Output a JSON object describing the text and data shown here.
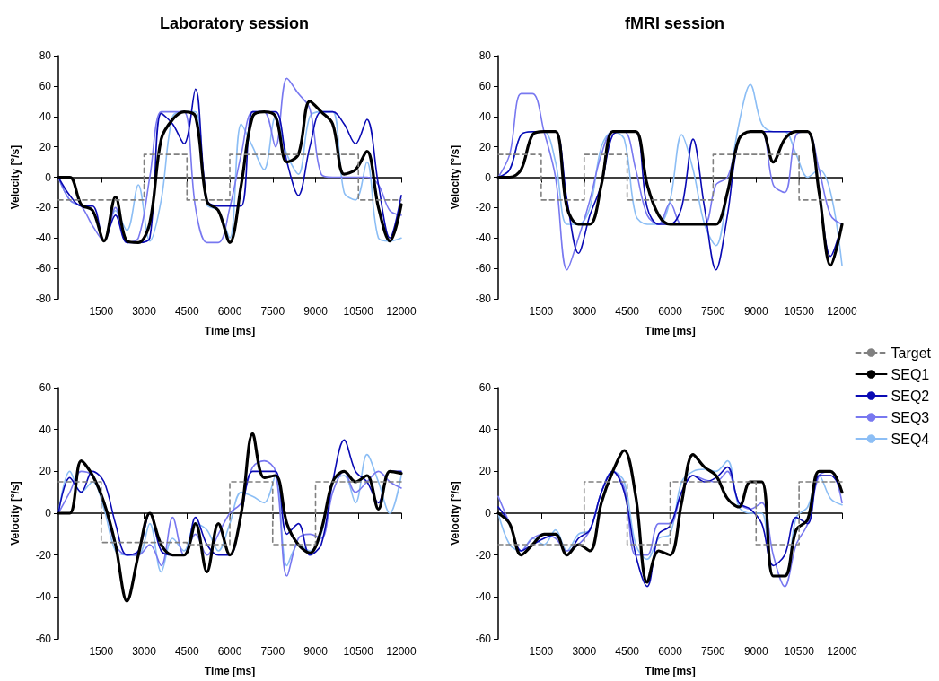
{
  "chart_data": [
    {
      "type": "line",
      "title": "Laboratory session",
      "xlabel": "Time [ms]",
      "ylabel": "Velocity [°/s]",
      "xlim": [
        0,
        12000
      ],
      "xticks": [
        1500,
        3000,
        4500,
        6000,
        7500,
        9000,
        10500,
        12000
      ],
      "ylim": [
        -80,
        80
      ],
      "yticks": [
        -80,
        -60,
        -40,
        -20,
        0,
        20,
        40,
        60,
        80
      ],
      "legend": false,
      "line_style": "solid",
      "marker": "none",
      "x": [
        0,
        400,
        800,
        1200,
        1600,
        2000,
        2400,
        2800,
        3200,
        3600,
        4000,
        4400,
        4800,
        5200,
        5600,
        6000,
        6400,
        6800,
        7200,
        7600,
        8000,
        8400,
        8800,
        9200,
        9600,
        10000,
        10400,
        10800,
        11200,
        11600,
        12000
      ],
      "series": [
        {
          "color": "#808080",
          "line_style": "dashed",
          "x": [
            0,
            3000,
            3000,
            4500,
            4500,
            6000,
            6000,
            10500,
            10500,
            12000
          ],
          "values": [
            -15,
            -15,
            15,
            15,
            -15,
            -15,
            15,
            15,
            -15,
            -15
          ]
        },
        {
          "color": "#000000",
          "values": [
            0,
            0,
            -18,
            -22,
            -42,
            -13,
            -42,
            -43,
            -30,
            25,
            38,
            43,
            40,
            -16,
            -22,
            -43,
            -5,
            40,
            43,
            40,
            10,
            15,
            50,
            43,
            35,
            2,
            5,
            17,
            -20,
            -42,
            -18
          ]
        },
        {
          "color": "#0a0ab4",
          "values": [
            0,
            -12,
            -19,
            -19,
            -42,
            -25,
            -43,
            -43,
            -40,
            42,
            35,
            22,
            58,
            -15,
            -19,
            -19,
            -19,
            43,
            43,
            43,
            10,
            -12,
            20,
            43,
            43,
            35,
            22,
            38,
            -5,
            -40,
            -12
          ]
        },
        {
          "color": "#7878f0",
          "values": [
            0,
            -15,
            -19,
            -32,
            -42,
            -20,
            -43,
            -40,
            0,
            43,
            43,
            43,
            -20,
            -43,
            -43,
            -20,
            15,
            43,
            43,
            20,
            65,
            55,
            45,
            2,
            0,
            0,
            0,
            0,
            -5,
            -22,
            -25
          ]
        },
        {
          "color": "#8cbef5",
          "values": [
            0,
            -15,
            -19,
            -22,
            -42,
            -22,
            -35,
            -5,
            -42,
            -15,
            40,
            43,
            43,
            -18,
            -22,
            -40,
            35,
            20,
            5,
            40,
            15,
            2,
            40,
            43,
            43,
            -10,
            -15,
            10,
            -40,
            -42,
            -40
          ]
        }
      ]
    },
    {
      "type": "line",
      "title": "fMRI session",
      "xlabel": "Time [ms]",
      "ylabel": "Velocity [°/s]",
      "xlim": [
        0,
        12000
      ],
      "xticks": [
        1500,
        3000,
        4500,
        6000,
        7500,
        9000,
        10500,
        12000
      ],
      "ylim": [
        -80,
        80
      ],
      "yticks": [
        -80,
        -60,
        -40,
        -20,
        0,
        20,
        40,
        60,
        80
      ],
      "legend": false,
      "line_style": "solid",
      "marker": "none",
      "x": [
        0,
        400,
        800,
        1200,
        1600,
        2000,
        2400,
        2800,
        3200,
        3600,
        4000,
        4400,
        4800,
        5200,
        5600,
        6000,
        6400,
        6800,
        7200,
        7600,
        8000,
        8400,
        8800,
        9200,
        9600,
        10000,
        10400,
        10800,
        11200,
        11600,
        12000
      ],
      "series": [
        {
          "color": "#808080",
          "line_style": "dashed",
          "x": [
            0,
            1500,
            1500,
            3000,
            3000,
            4500,
            4500,
            7500,
            7500,
            10500,
            10500,
            12000
          ],
          "values": [
            15,
            15,
            -15,
            -15,
            15,
            15,
            -15,
            -15,
            15,
            15,
            -15,
            -15
          ]
        },
        {
          "color": "#000000",
          "values": [
            0,
            0,
            5,
            28,
            30,
            30,
            -20,
            -31,
            -31,
            -5,
            30,
            30,
            30,
            -5,
            -25,
            -31,
            -31,
            -31,
            -31,
            -31,
            -10,
            25,
            30,
            30,
            10,
            25,
            30,
            30,
            -10,
            -58,
            -31
          ]
        },
        {
          "color": "#0a0ab4",
          "values": [
            0,
            5,
            28,
            30,
            30,
            30,
            -15,
            -50,
            -25,
            -5,
            28,
            30,
            30,
            -20,
            -31,
            -31,
            -20,
            25,
            -20,
            -61,
            -25,
            25,
            30,
            30,
            30,
            30,
            30,
            30,
            -10,
            -52,
            -31
          ]
        },
        {
          "color": "#7878f0",
          "values": [
            0,
            15,
            55,
            55,
            30,
            0,
            -61,
            -40,
            -15,
            15,
            30,
            30,
            5,
            -25,
            -31,
            -17,
            -31,
            -31,
            -31,
            -5,
            0,
            25,
            30,
            30,
            -5,
            -10,
            28,
            30,
            5,
            -25,
            -31
          ]
        },
        {
          "color": "#8cbef5",
          "values": [
            0,
            5,
            28,
            30,
            30,
            10,
            -31,
            -31,
            -20,
            20,
            30,
            25,
            -25,
            -31,
            -31,
            -15,
            28,
            5,
            -31,
            -45,
            -10,
            35,
            61,
            35,
            30,
            30,
            15,
            0,
            5,
            -10,
            -58
          ]
        }
      ]
    },
    {
      "type": "line",
      "xlabel": "Time [ms]",
      "ylabel": "Velocity [°/s]",
      "xlim": [
        0,
        12000
      ],
      "xticks": [
        1500,
        3000,
        4500,
        6000,
        7500,
        9000,
        10500,
        12000
      ],
      "ylim": [
        -60,
        60
      ],
      "yticks": [
        -60,
        -40,
        -20,
        0,
        20,
        40,
        60
      ],
      "legend": false,
      "line_style": "solid",
      "marker": "none",
      "x": [
        0,
        400,
        800,
        1200,
        1600,
        2000,
        2400,
        2800,
        3200,
        3600,
        4000,
        4400,
        4800,
        5200,
        5600,
        6000,
        6400,
        6800,
        7200,
        7600,
        8000,
        8400,
        8800,
        9200,
        9600,
        10000,
        10400,
        10800,
        11200,
        11600,
        12000
      ],
      "series": [
        {
          "color": "#808080",
          "line_style": "dashed",
          "x": [
            0,
            1500,
            1500,
            4500,
            4500,
            6000,
            6000,
            7500,
            7500,
            9000,
            9000,
            12000
          ],
          "values": [
            15,
            15,
            -14,
            -14,
            -15,
            -15,
            15,
            15,
            -15,
            -15,
            15,
            15
          ]
        },
        {
          "color": "#000000",
          "values": [
            0,
            0,
            25,
            18,
            5,
            -15,
            -42,
            -20,
            0,
            -15,
            -20,
            -20,
            -5,
            -28,
            -5,
            -20,
            0,
            38,
            17,
            18,
            -5,
            -15,
            -19,
            -8,
            15,
            20,
            15,
            18,
            2,
            20,
            19
          ]
        },
        {
          "color": "#0a0ab4",
          "values": [
            0,
            17,
            10,
            20,
            15,
            -5,
            -20,
            -18,
            0,
            -18,
            -20,
            -20,
            -2,
            -15,
            -20,
            -20,
            0,
            20,
            20,
            20,
            -10,
            -5,
            -20,
            -15,
            15,
            35,
            20,
            15,
            5,
            20,
            20
          ]
        },
        {
          "color": "#7878f0",
          "values": [
            0,
            10,
            20,
            18,
            5,
            -15,
            -20,
            -20,
            -15,
            -25,
            -2,
            -20,
            -10,
            -20,
            -10,
            0,
            5,
            22,
            25,
            20,
            -30,
            -12,
            -10,
            -12,
            10,
            20,
            10,
            15,
            20,
            15,
            12
          ]
        },
        {
          "color": "#8cbef5",
          "values": [
            0,
            20,
            10,
            15,
            2,
            -18,
            -20,
            -20,
            -5,
            -28,
            -12,
            -18,
            -5,
            -8,
            -18,
            -5,
            10,
            8,
            5,
            18,
            -25,
            -15,
            -18,
            -10,
            15,
            18,
            5,
            28,
            15,
            0,
            18
          ]
        }
      ]
    },
    {
      "type": "line",
      "xlabel": "Time [ms]",
      "ylabel": "Velocity [°/s]",
      "xlim": [
        0,
        12000
      ],
      "xticks": [
        1500,
        3000,
        4500,
        6000,
        7500,
        9000,
        10500,
        12000
      ],
      "ylim": [
        -60,
        60
      ],
      "yticks": [
        -60,
        -40,
        -20,
        0,
        20,
        40,
        60
      ],
      "legend": "top right",
      "line_style": "solid",
      "marker": "none",
      "x": [
        0,
        400,
        800,
        1200,
        1600,
        2000,
        2400,
        2800,
        3200,
        3600,
        4000,
        4400,
        4800,
        5200,
        5600,
        6000,
        6400,
        6800,
        7200,
        7600,
        8000,
        8400,
        8800,
        9200,
        9600,
        10000,
        10400,
        10800,
        11200,
        11600,
        12000
      ],
      "series": [
        {
          "name": "Target",
          "color": "#808080",
          "line_style": "dashed",
          "x": [
            0,
            3000,
            3000,
            4500,
            4500,
            6000,
            6000,
            9000,
            9000,
            10500,
            10500,
            12000
          ],
          "values": [
            -15,
            -15,
            15,
            15,
            -15,
            -15,
            15,
            15,
            -15,
            -15,
            15,
            15
          ]
        },
        {
          "name": "SEQ1",
          "color": "#000000",
          "values": [
            0,
            -5,
            -20,
            -15,
            -10,
            -10,
            -20,
            -15,
            -18,
            5,
            20,
            30,
            8,
            -33,
            -18,
            -20,
            5,
            28,
            22,
            18,
            7,
            3,
            15,
            15,
            -30,
            -30,
            -8,
            -3,
            20,
            20,
            10
          ]
        },
        {
          "name": "SEQ2",
          "color": "#0a0ab4",
          "values": [
            3,
            -5,
            -18,
            -15,
            -12,
            -10,
            -20,
            -12,
            -8,
            10,
            20,
            10,
            -20,
            -35,
            -10,
            -6,
            10,
            18,
            15,
            17,
            22,
            5,
            2,
            -5,
            -25,
            -20,
            -2,
            -5,
            18,
            18,
            10
          ]
        },
        {
          "name": "SEQ3",
          "color": "#7878f0",
          "values": [
            8,
            -5,
            -18,
            -12,
            -10,
            -12,
            -18,
            -15,
            -8,
            10,
            20,
            12,
            -20,
            -20,
            -5,
            -5,
            10,
            18,
            16,
            15,
            20,
            5,
            2,
            5,
            -20,
            -35,
            -15,
            -5,
            18,
            20,
            5
          ]
        },
        {
          "name": "SEQ4",
          "color": "#8cbef5",
          "values": [
            0,
            -15,
            -18,
            -12,
            -15,
            -8,
            -18,
            -10,
            -8,
            10,
            20,
            15,
            -15,
            -22,
            -12,
            -10,
            15,
            20,
            21,
            20,
            25,
            3,
            0,
            0,
            -30,
            -30,
            -2,
            3,
            18,
            7,
            4
          ]
        }
      ]
    }
  ]
}
